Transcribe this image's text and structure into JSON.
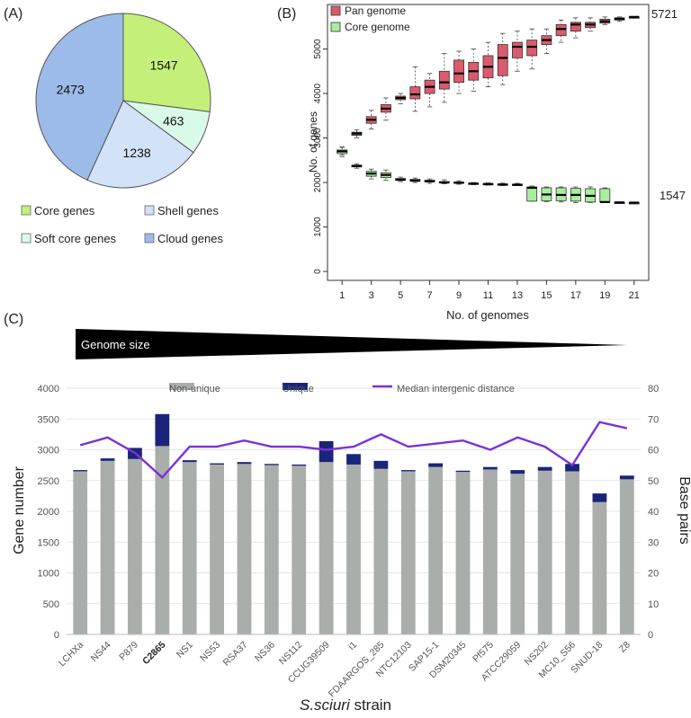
{
  "panels": {
    "a": "(A)",
    "b": "(B)",
    "c": "(C)"
  },
  "colors": {
    "core": "#c4f07a",
    "soft_core": "#d9fae9",
    "shell": "#d2e2f7",
    "cloud": "#9cbbe8",
    "pan": "#dc5a6e",
    "core_box": "#a7ef9f",
    "non_unique": "#aaaeab",
    "unique": "#1a2478",
    "median_line": "#7a32d8"
  },
  "chart_data": [
    {
      "type": "pie",
      "panel": "A",
      "slices": [
        {
          "label": "Core genes",
          "value": 1547,
          "color": "#c4f07a"
        },
        {
          "label": "Soft core genes",
          "value": 463,
          "color": "#d9fae9"
        },
        {
          "label": "Shell genes",
          "value": 1238,
          "color": "#d2e2f7"
        },
        {
          "label": "Cloud genes",
          "value": 2473,
          "color": "#9cbbe8"
        }
      ],
      "legend": [
        "Core genes",
        "Shell genes",
        "Soft core genes",
        "Cloud genes"
      ]
    },
    {
      "type": "box",
      "panel": "B",
      "xlabel": "No. of genomes",
      "ylabel": "No. of genes",
      "xlim": [
        0,
        22
      ],
      "ylim": [
        -200,
        6000
      ],
      "yticks": [
        0,
        1000,
        2000,
        3000,
        4000,
        5000
      ],
      "xticks": [
        1,
        3,
        5,
        7,
        9,
        11,
        13,
        15,
        17,
        19,
        21
      ],
      "right_labels": [
        "5721",
        "1547"
      ],
      "series": [
        {
          "name": "Pan genome",
          "color": "#dc5a6e",
          "boxes": [
            [
              1,
              2620,
              2680,
              2700,
              2730,
              2790
            ],
            [
              2,
              3000,
              3060,
              3100,
              3130,
              3180
            ],
            [
              3,
              3200,
              3330,
              3410,
              3480,
              3620
            ],
            [
              4,
              3400,
              3580,
              3660,
              3750,
              3900
            ],
            [
              5,
              3770,
              3860,
              3900,
              3940,
              4000
            ],
            [
              6,
              3600,
              3880,
              3980,
              4150,
              4600
            ],
            [
              7,
              3700,
              4000,
              4150,
              4300,
              4450
            ],
            [
              8,
              3800,
              4100,
              4250,
              4500,
              4900
            ],
            [
              9,
              4000,
              4250,
              4450,
              4750,
              4950
            ],
            [
              10,
              4050,
              4300,
              4500,
              4700,
              5000
            ],
            [
              11,
              4150,
              4350,
              4600,
              4850,
              5150
            ],
            [
              12,
              4200,
              4400,
              4800,
              5100,
              5350
            ],
            [
              13,
              4500,
              4800,
              5050,
              5150,
              5400
            ],
            [
              14,
              4550,
              4850,
              5050,
              5200,
              5450
            ],
            [
              15,
              4900,
              5100,
              5200,
              5300,
              5450
            ],
            [
              16,
              5150,
              5300,
              5450,
              5550,
              5650
            ],
            [
              17,
              5250,
              5400,
              5550,
              5600,
              5700
            ],
            [
              18,
              5400,
              5480,
              5550,
              5600,
              5700
            ],
            [
              19,
              5550,
              5580,
              5620,
              5670,
              5720
            ],
            [
              20,
              5620,
              5650,
              5680,
              5700,
              5720
            ],
            [
              21,
              5721,
              5721,
              5721,
              5721,
              5721
            ]
          ]
        },
        {
          "name": "Core genome",
          "color": "#a7ef9f",
          "boxes": [
            [
              1,
              2580,
              2650,
              2700,
              2730,
              2800
            ],
            [
              2,
              2320,
              2350,
              2370,
              2390,
              2420
            ],
            [
              3,
              2080,
              2140,
              2200,
              2250,
              2300
            ],
            [
              4,
              2050,
              2110,
              2170,
              2220,
              2280
            ],
            [
              5,
              2020,
              2050,
              2060,
              2090,
              2120
            ],
            [
              6,
              2000,
              2030,
              2040,
              2070,
              2100
            ],
            [
              7,
              1980,
              2010,
              2030,
              2050,
              2080
            ],
            [
              8,
              1970,
              1990,
              2000,
              2020,
              2060
            ],
            [
              9,
              1960,
              1980,
              1995,
              2010,
              2040
            ],
            [
              10,
              1950,
              1965,
              1975,
              1985,
              2000
            ],
            [
              11,
              1940,
              1955,
              1965,
              1975,
              1990
            ],
            [
              12,
              1930,
              1945,
              1955,
              1965,
              1985
            ],
            [
              13,
              1930,
              1940,
              1950,
              1960,
              1980
            ],
            [
              14,
              1580,
              1580,
              1880,
              1900,
              1920
            ],
            [
              15,
              1570,
              1590,
              1730,
              1880,
              1900
            ],
            [
              16,
              1560,
              1590,
              1720,
              1880,
              1900
            ],
            [
              17,
              1550,
              1580,
              1720,
              1870,
              1900
            ],
            [
              18,
              1550,
              1560,
              1700,
              1860,
              1900
            ],
            [
              19,
              1550,
              1560,
              1560,
              1860,
              1880
            ],
            [
              20,
              1548,
              1550,
              1552,
              1555,
              1560
            ],
            [
              21,
              1547,
              1547,
              1547,
              1547,
              1547
            ]
          ]
        }
      ]
    },
    {
      "type": "bar",
      "panel": "C",
      "title": "Genome size",
      "xlabel": "S.sciuri strain",
      "ylabel": "Gene number",
      "ylabel_right": "Base pairs",
      "ylim": [
        0,
        4000
      ],
      "yticks": [
        0,
        500,
        1000,
        1500,
        2000,
        2500,
        3000,
        3500,
        4000
      ],
      "ylim_right": [
        0,
        80
      ],
      "yticks_right": [
        0,
        10,
        20,
        30,
        40,
        50,
        60,
        70,
        80
      ],
      "bold_category": "C2865",
      "categories": [
        "LCHXa",
        "NS44",
        "P879",
        "C2865",
        "NS1",
        "NS53",
        "RSA37",
        "NS36",
        "NS112",
        "CCUG39509",
        "i1",
        "FDAARGOS_285",
        "NTC12103",
        "SAP15-1",
        "DSM20345",
        "Pf575",
        "ATCC29059",
        "NS202",
        "MC10_S56",
        "SNUD-18",
        "Z8"
      ],
      "series": [
        {
          "name": "Non-unique",
          "type": "bar",
          "values": [
            2650,
            2820,
            2850,
            3060,
            2800,
            2760,
            2770,
            2750,
            2740,
            2800,
            2760,
            2690,
            2650,
            2720,
            2640,
            2680,
            2610,
            2660,
            2650,
            2150,
            2520
          ]
        },
        {
          "name": "Unique",
          "type": "bar",
          "values": [
            20,
            40,
            180,
            520,
            30,
            20,
            30,
            20,
            20,
            340,
            170,
            130,
            20,
            60,
            20,
            40,
            60,
            60,
            120,
            140,
            60
          ]
        },
        {
          "name": "Median intergenic distance",
          "type": "line",
          "axis": "right",
          "values": [
            61.5,
            64,
            59,
            51,
            61,
            61,
            63,
            61,
            61,
            60,
            61,
            65,
            61,
            62,
            63,
            60,
            64,
            61,
            55,
            69,
            67
          ]
        }
      ]
    }
  ]
}
